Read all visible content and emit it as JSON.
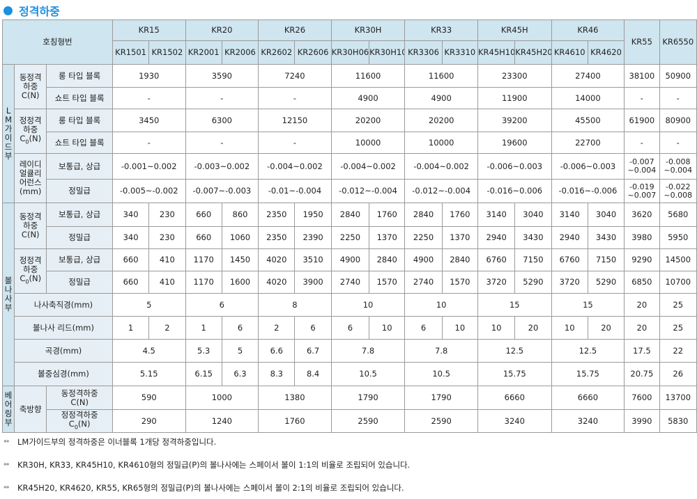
{
  "title": "정격하중",
  "table": {
    "header": {
      "label": "호칭형번",
      "models": [
        "KR15",
        "KR20",
        "KR26",
        "KR30H",
        "KR33",
        "KR45H",
        "KR46"
      ],
      "single_models": [
        "KR55",
        "KR6550"
      ],
      "sub": [
        "KR1501",
        "KR1502",
        "KR2001",
        "KR2006",
        "KR2602",
        "KR2606",
        "KR30H06",
        "KR30H10",
        "KR3306",
        "KR3310",
        "KR45H10",
        "KR45H20",
        "KR4610",
        "KR4620"
      ]
    },
    "lm": {
      "label": "L\nM\n가\n이\n드\n부",
      "dynamic_label": "동정격\n하중\nC(N)",
      "static_label": "정정격\n하중\nC",
      "static_sub": "0",
      "static_unit": "(N)",
      "long_block": "롱 타입 블록",
      "short_block": "쇼트 타입 블록",
      "dyn_long": [
        "1930",
        "3590",
        "7240",
        "11600",
        "11600",
        "23300",
        "27400",
        "38100",
        "50900"
      ],
      "dyn_short": [
        "-",
        "-",
        "-",
        "4900",
        "4900",
        "11900",
        "14000",
        "-",
        "-"
      ],
      "st_long": [
        "3450",
        "6300",
        "12150",
        "20200",
        "20200",
        "39200",
        "45500",
        "61900",
        "80900"
      ],
      "st_short": [
        "-",
        "-",
        "-",
        "10000",
        "10000",
        "19600",
        "22700",
        "-",
        "-"
      ],
      "rd_label": "레이디\n얼큘리\n어런스\n(mm)",
      "normal": "보통급, 상급",
      "precision": "정밀급",
      "rd_normal": [
        "-0.001~0.002",
        "-0.003~0.002",
        "-0.004~0.002",
        "-0.004~0.002",
        "-0.004~0.002",
        "-0.006~0.003",
        "-0.006~0.003"
      ],
      "rd_normal_single": [
        "-0.007\n~0.004",
        "-0.008\n~0.004"
      ],
      "rd_precision": [
        "-0.005~-0.002",
        "-0.007~-0.003",
        "-0.01~-0.004",
        "-0.012~-0.004",
        "-0.012~-0.004",
        "-0.016~0.006",
        "-0.016~-0.006"
      ],
      "rd_precision_single": [
        "-0.019\n~0.007",
        "-0.022\n~0.008"
      ]
    },
    "bs": {
      "label": "볼\n나\n사\n부",
      "dyn_normal": [
        "340",
        "230",
        "660",
        "860",
        "2350",
        "1950",
        "2840",
        "1760",
        "2840",
        "1760",
        "3140",
        "3040",
        "3140",
        "3040",
        "3620",
        "5680"
      ],
      "dyn_precision": [
        "340",
        "230",
        "660",
        "1060",
        "2350",
        "2390",
        "2250",
        "1370",
        "2250",
        "1370",
        "2940",
        "3430",
        "2940",
        "3430",
        "3980",
        "5950"
      ],
      "st_normal": [
        "660",
        "410",
        "1170",
        "1450",
        "4020",
        "3510",
        "4900",
        "2840",
        "4900",
        "2840",
        "6760",
        "7150",
        "6760",
        "7150",
        "9290",
        "14500"
      ],
      "st_precision": [
        "660",
        "410",
        "1170",
        "1600",
        "4020",
        "3900",
        "2740",
        "1570",
        "2740",
        "1570",
        "3720",
        "5290",
        "3720",
        "5290",
        "6850",
        "10700"
      ],
      "shaft_label": "나사축직경(mm)",
      "shaft": [
        "5",
        "6",
        "8",
        "10",
        "10",
        "15",
        "15",
        "20",
        "25"
      ],
      "lead_label": "볼나사 리드(mm)",
      "lead": [
        "1",
        "2",
        "1",
        "6",
        "2",
        "6",
        "6",
        "10",
        "6",
        "10",
        "10",
        "20",
        "10",
        "20",
        "20",
        "25"
      ],
      "ball_label": "곡경(mm)",
      "ball": [
        "4.5",
        "5.3",
        "5",
        "6.6",
        "6.7",
        "7.8",
        "7.8",
        "12.5",
        "12.5",
        "17.5",
        "22"
      ],
      "pcd_label": "볼중심경(mm)",
      "pcd": [
        "5.15",
        "6.15",
        "6.3",
        "8.3",
        "8.4",
        "10.5",
        "10.5",
        "15.75",
        "15.75",
        "20.75",
        "26"
      ]
    },
    "br": {
      "label": "베\n어\n링\n부",
      "axial": "축방향",
      "dyn_label": "동정격하중\nC(N)",
      "st_label": "정정격하중\nC",
      "st_sub": "0",
      "st_unit": "(N)",
      "dyn": [
        "590",
        "1000",
        "1380",
        "1790",
        "1790",
        "6660",
        "6660",
        "7600",
        "13700"
      ],
      "st": [
        "290",
        "1240",
        "1760",
        "2590",
        "2590",
        "3240",
        "3240",
        "3990",
        "5830"
      ]
    }
  },
  "notes": [
    "LM가이드부의 정격하중은 이너블록 1개당 정격하중입니다.",
    "KR30H, KR33, KR45H10, KR4610형의 정밀급(P)의 볼나사에는 스페이서 볼이 1:1의 비율로 조립되어 있습니다.",
    "KR45H20, KR4620, KR55, KR65형의 정밀급(P)의 볼나사에는 스페이서 볼이 2:1의 비율로 조립되어 있습니다."
  ]
}
